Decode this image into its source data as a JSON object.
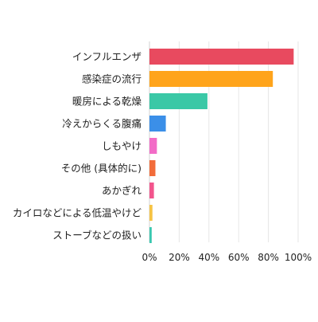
{
  "chart_data": {
    "type": "bar",
    "orientation": "horizontal",
    "categories": [
      "インフルエンザ",
      "感染症の流行",
      "暖房による乾燥",
      "冷えからくる腹痛",
      "しもやけ",
      "その他 (具体的に)",
      "あかぎれ",
      "カイロなどによる低温やけど",
      "ストーブなどの扱い"
    ],
    "values": [
      97,
      83,
      39,
      11,
      5,
      4,
      3,
      2,
      1.5
    ],
    "colors": [
      "#e84a5f",
      "#ffa41b",
      "#3ac8a6",
      "#3b8fe8",
      "#f26cc7",
      "#f26c3a",
      "#f2558d",
      "#f6c343",
      "#3ac8b0"
    ],
    "xlim": [
      0,
      100
    ],
    "xticks": [
      "0%",
      "20%",
      "40%",
      "60%",
      "80%",
      "100%"
    ],
    "grid": true,
    "title": "",
    "xlabel": "",
    "ylabel": ""
  }
}
